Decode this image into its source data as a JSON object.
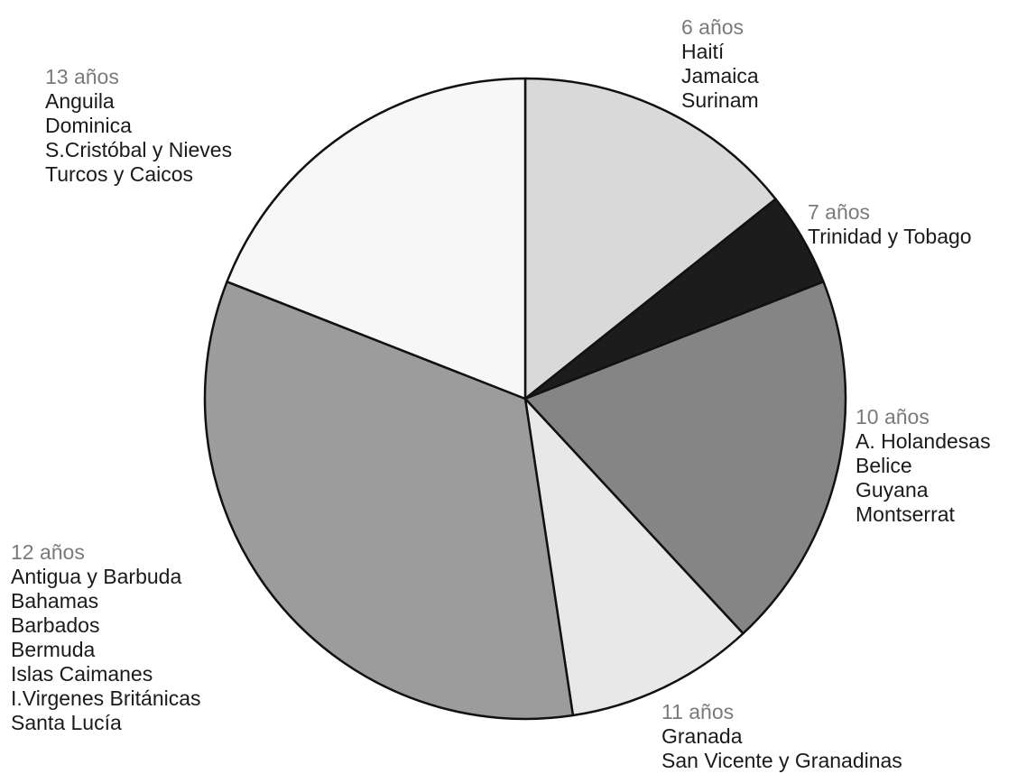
{
  "chart_data": {
    "type": "pie",
    "title": "",
    "slices": [
      {
        "label": "6 años",
        "value": 3,
        "color": "#d9d9d9",
        "countries": [
          "Haití",
          "Jamaica",
          "Surinam"
        ]
      },
      {
        "label": "7 años",
        "value": 1,
        "color": "#1c1c1c",
        "countries": [
          "Trinidad y Tobago"
        ]
      },
      {
        "label": "10 años",
        "value": 4,
        "color": "#858585",
        "countries": [
          "A. Holandesas",
          "Belice",
          "Guyana",
          "Montserrat"
        ]
      },
      {
        "label": "11 años",
        "value": 2,
        "color": "#e8e8e8",
        "countries": [
          "Granada",
          "San Vicente y Granadinas"
        ]
      },
      {
        "label": "12 años",
        "value": 7,
        "color": "#9c9c9c",
        "countries": [
          "Antigua y Barbuda",
          "Bahamas",
          "Barbados",
          "Bermuda",
          "Islas Caimanes",
          "I.Virgenes Británicas",
          "Santa Lucía"
        ]
      },
      {
        "label": "13 años",
        "value": 4,
        "color": "#f7f7f7",
        "countries": [
          "Anguila",
          "Dominica",
          "S.Cristóbal y Nieves",
          "Turcos y Caicos"
        ]
      }
    ],
    "legend": "none",
    "start_angle": "12 o'clock",
    "direction": "clockwise"
  }
}
